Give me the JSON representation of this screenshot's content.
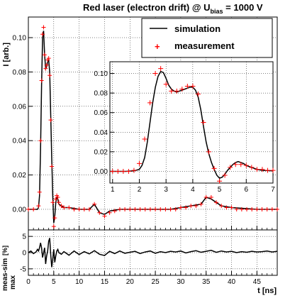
{
  "title": {
    "main": "Red laser (electron drift) @ U",
    "sub": "bias",
    "suffix": " = 1000 V"
  },
  "legend": {
    "simulation": "simulation",
    "measurement": "measurement",
    "placement": "top-right"
  },
  "colors": {
    "simulation": "#000000",
    "measurement": "#ff0000"
  },
  "chart_data": [
    {
      "type": "line",
      "panel": "main",
      "xlabel": "t [ns]",
      "ylabel": "I [arb.]",
      "xlim": [
        0,
        49
      ],
      "ylim": [
        -0.012,
        0.112
      ],
      "xticks": [
        0,
        5,
        10,
        15,
        20,
        25,
        30,
        35,
        40,
        45
      ],
      "yticks": [
        0.0,
        0.02,
        0.04,
        0.06,
        0.08,
        0.1
      ],
      "ytick_labels": [
        "0.00",
        "0.02",
        "0.04",
        "0.06",
        "0.08",
        "0.10"
      ],
      "grid": true,
      "series": [
        {
          "name": "simulation",
          "style": "line",
          "x": [
            0,
            1.8,
            2.0,
            2.2,
            2.4,
            2.6,
            2.8,
            3.0,
            3.2,
            3.4,
            3.6,
            3.8,
            4.0,
            4.2,
            4.4,
            4.6,
            4.8,
            5.0,
            5.2,
            5.4,
            5.6,
            5.8,
            6.0,
            6.5,
            7.0,
            8,
            10,
            12,
            13,
            14,
            15,
            16,
            18,
            20,
            22,
            25,
            28,
            30,
            32,
            34,
            35,
            36,
            37,
            38,
            40,
            45,
            49
          ],
          "y": [
            0.0,
            0.0,
            0.001,
            0.008,
            0.035,
            0.072,
            0.1,
            0.104,
            0.09,
            0.082,
            0.083,
            0.086,
            0.087,
            0.08,
            0.055,
            0.03,
            0.008,
            -0.008,
            -0.004,
            0.004,
            0.007,
            0.006,
            0.003,
            0.002,
            0.001,
            0.001,
            0.0,
            0.0,
            0.003,
            -0.002,
            -0.003,
            -0.001,
            0.0,
            0.0,
            0.0,
            0.0,
            0.0,
            0.001,
            0.002,
            0.003,
            0.007,
            0.006,
            0.004,
            0.002,
            0.001,
            0.0,
            0.0
          ]
        },
        {
          "name": "measurement",
          "style": "markers",
          "x": [
            0,
            1,
            2.0,
            2.2,
            2.4,
            2.6,
            2.8,
            3.0,
            3.2,
            3.4,
            3.6,
            3.8,
            4.0,
            4.2,
            4.4,
            4.6,
            4.8,
            5.0,
            5.2,
            5.4,
            5.6,
            5.8,
            6.0,
            6.5,
            7.0,
            8,
            9,
            10,
            11,
            12,
            13,
            14,
            15,
            16,
            17,
            18,
            19,
            20,
            21,
            22,
            23,
            24,
            25,
            26,
            27,
            28,
            29,
            30,
            31,
            32,
            33,
            34,
            35,
            36,
            37,
            38,
            39,
            40,
            41,
            42,
            43,
            44,
            45,
            46,
            47,
            48,
            49
          ],
          "y": [
            0.0,
            0.0,
            0.002,
            0.01,
            0.04,
            0.075,
            0.102,
            0.106,
            0.09,
            0.082,
            0.084,
            0.087,
            0.088,
            0.078,
            0.052,
            0.025,
            0.004,
            -0.01,
            -0.005,
            0.006,
            0.008,
            0.007,
            0.004,
            0.002,
            0.001,
            0.001,
            0.0,
            0.0,
            0.0,
            0.0,
            0.003,
            -0.002,
            -0.004,
            -0.002,
            -0.001,
            0.0,
            0.0,
            0.0,
            0.0,
            0.0,
            0.0,
            0.0,
            0.0,
            0.0,
            0.0,
            0.0,
            0.0,
            0.001,
            0.001,
            0.002,
            0.002,
            0.003,
            0.007,
            0.007,
            0.004,
            0.002,
            0.001,
            0.001,
            0.0,
            0.0,
            0.0,
            0.0,
            0.0,
            0.0,
            0.0,
            0.0,
            0.0
          ]
        }
      ]
    },
    {
      "type": "line",
      "panel": "inset",
      "xlim": [
        0.9,
        7.0
      ],
      "ylim": [
        -0.012,
        0.112
      ],
      "xticks": [
        1,
        2,
        3,
        4,
        5,
        6,
        7
      ],
      "yticks": [
        0.0,
        0.02,
        0.04,
        0.06,
        0.08,
        0.1
      ],
      "ytick_labels": [
        "0.00",
        "0.02",
        "0.04",
        "0.06",
        "0.08",
        "0.10"
      ],
      "grid": true,
      "series": [
        {
          "name": "simulation",
          "style": "line",
          "x": [
            0.9,
            1.2,
            1.5,
            1.8,
            2.0,
            2.1,
            2.2,
            2.3,
            2.4,
            2.5,
            2.6,
            2.7,
            2.8,
            2.9,
            3.0,
            3.1,
            3.2,
            3.3,
            3.4,
            3.5,
            3.6,
            3.7,
            3.8,
            3.9,
            4.0,
            4.1,
            4.2,
            4.3,
            4.4,
            4.5,
            4.6,
            4.7,
            4.8,
            4.9,
            5.0,
            5.1,
            5.2,
            5.3,
            5.4,
            5.5,
            5.6,
            5.7,
            5.8,
            5.9,
            6.0,
            6.2,
            6.4,
            6.6,
            6.8,
            7.0
          ],
          "y": [
            0.0,
            0.0,
            0.0,
            0.0005,
            0.002,
            0.006,
            0.014,
            0.03,
            0.05,
            0.07,
            0.086,
            0.097,
            0.102,
            0.101,
            0.095,
            0.088,
            0.084,
            0.082,
            0.081,
            0.082,
            0.083,
            0.084,
            0.085,
            0.086,
            0.086,
            0.083,
            0.076,
            0.063,
            0.046,
            0.03,
            0.018,
            0.009,
            0.002,
            -0.004,
            -0.007,
            -0.006,
            -0.003,
            0.001,
            0.004,
            0.007,
            0.009,
            0.01,
            0.009,
            0.008,
            0.006,
            0.004,
            0.002,
            0.001,
            0.0008,
            0.0005
          ]
        },
        {
          "name": "measurement",
          "style": "markers",
          "x": [
            1.0,
            1.2,
            1.4,
            1.6,
            1.8,
            2.0,
            2.2,
            2.4,
            2.6,
            2.8,
            3.0,
            3.2,
            3.4,
            3.6,
            3.8,
            4.0,
            4.2,
            4.4,
            4.6,
            4.8,
            5.0,
            5.2,
            5.4,
            5.6,
            5.8,
            6.0,
            6.2,
            6.4,
            6.6,
            6.8,
            7.0
          ],
          "y": [
            0.0,
            0.0,
            0.0,
            0.0,
            0.001,
            0.008,
            0.033,
            0.07,
            0.1,
            0.105,
            0.089,
            0.082,
            0.082,
            0.084,
            0.087,
            0.087,
            0.079,
            0.05,
            0.02,
            0.003,
            -0.01,
            -0.004,
            0.004,
            0.007,
            0.007,
            0.006,
            0.004,
            0.002,
            0.002,
            0.001,
            0.001
          ]
        }
      ]
    },
    {
      "type": "line",
      "panel": "residual",
      "xlabel": "t [ns]",
      "ylabel": "meas-sim [%] / max",
      "xlim": [
        0,
        49
      ],
      "ylim": [
        -7,
        7
      ],
      "yticks": [
        -5,
        0,
        5
      ],
      "grid": true,
      "series": [
        {
          "name": "meas-sim",
          "style": "line",
          "x": [
            0,
            0.5,
            1.0,
            1.5,
            1.8,
            2.0,
            2.2,
            2.4,
            2.6,
            2.8,
            3.0,
            3.2,
            3.4,
            3.6,
            3.8,
            4.0,
            4.2,
            4.4,
            4.6,
            4.8,
            5.0,
            5.2,
            5.4,
            5.6,
            5.8,
            6.0,
            6.5,
            7,
            8,
            9,
            10,
            11,
            12,
            13,
            14,
            15,
            16,
            17,
            18,
            19,
            20,
            21,
            22,
            23,
            24,
            25,
            26,
            27,
            28,
            29,
            30,
            31,
            32,
            33,
            34,
            35,
            36,
            37,
            38,
            39,
            40,
            41,
            42,
            43,
            44,
            45,
            46,
            47,
            48,
            49
          ],
          "y": [
            0.0,
            0.5,
            -0.3,
            0.2,
            1.0,
            0.5,
            1.5,
            3.0,
            1.5,
            -1.5,
            0.0,
            1.5,
            -3.5,
            -1.0,
            0.5,
            3.5,
            4.5,
            -0.5,
            -4.5,
            -2.0,
            1.0,
            -3.0,
            -1.0,
            0.5,
            1.0,
            0.0,
            -0.5,
            0.3,
            -0.8,
            0.5,
            -0.6,
            0.3,
            -0.4,
            0.6,
            -0.5,
            -0.9,
            0.4,
            -0.3,
            0.5,
            -0.2,
            0.1,
            0.4,
            -0.3,
            0.2,
            0.5,
            -0.2,
            0.3,
            0.0,
            0.4,
            0.2,
            0.5,
            -0.1,
            0.3,
            0.6,
            0.1,
            0.4,
            0.7,
            0.1,
            0.5,
            0.2,
            0.4,
            0.0,
            0.3,
            0.1,
            0.4,
            0.2,
            0.3,
            0.5,
            0.2,
            0.4
          ]
        }
      ]
    }
  ]
}
